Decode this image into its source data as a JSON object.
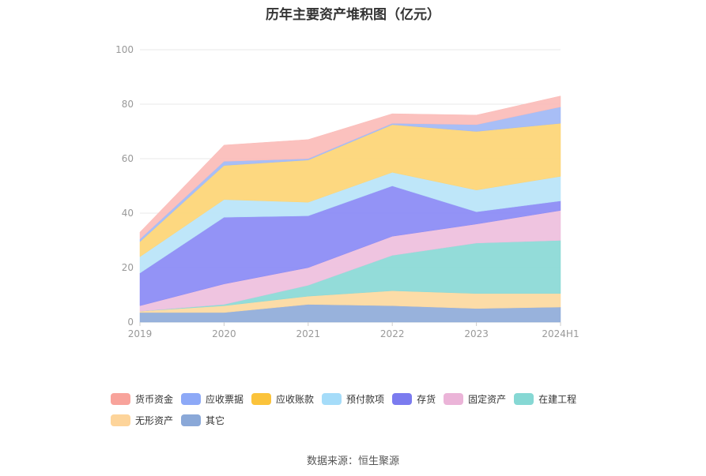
{
  "chart_data": {
    "type": "area",
    "stacked": true,
    "title": "历年主要资产堆积图（亿元）",
    "categories": [
      "2019",
      "2020",
      "2021",
      "2022",
      "2023",
      "2024H1"
    ],
    "ylim": [
      0,
      100
    ],
    "yticks": [
      0,
      20,
      40,
      60,
      80,
      100
    ],
    "grid": true,
    "legend_position": "bottom",
    "series": [
      {
        "name": "其它",
        "color": "#8fabd9",
        "values": [
          3.5,
          3.5,
          6.5,
          6,
          5,
          5.5
        ]
      },
      {
        "name": "无形资产",
        "color": "#fcd9a0",
        "values": [
          0.5,
          2.5,
          3,
          5.5,
          5.5,
          5
        ]
      },
      {
        "name": "在建工程",
        "color": "#8ad9d6",
        "values": [
          0,
          0.5,
          4,
          13,
          18.5,
          19.5
        ]
      },
      {
        "name": "固定资产",
        "color": "#eebfdd",
        "values": [
          2,
          7.5,
          6.5,
          7,
          7,
          11
        ]
      },
      {
        "name": "存货",
        "color": "#8a8af5",
        "values": [
          12,
          24.5,
          19,
          18.5,
          4.5,
          3.5
        ]
      },
      {
        "name": "预付款项",
        "color": "#b8e4f8",
        "values": [
          6,
          6.5,
          5,
          5,
          8,
          9
        ]
      },
      {
        "name": "应收账款",
        "color": "#fdd575",
        "values": [
          5.5,
          12.5,
          15.5,
          17.5,
          21.5,
          19.5
        ]
      },
      {
        "name": "应收票据",
        "color": "#a1b8f5",
        "values": [
          1,
          1.5,
          0.5,
          0.5,
          2.5,
          6
        ]
      },
      {
        "name": "货币资金",
        "color": "#fbbcb8",
        "values": [
          2.5,
          6,
          7,
          3.5,
          3.5,
          4
        ]
      }
    ],
    "legend_order": [
      "货币资金",
      "应收票据",
      "应收账款",
      "预付款项",
      "存货",
      "固定资产",
      "在建工程",
      "无形资产",
      "其它"
    ],
    "legend_colors": {
      "货币资金": "#f8a39b",
      "应收票据": "#8da9f7",
      "应收账款": "#fbc33b",
      "预付款项": "#a5dcf9",
      "存货": "#7b7bef",
      "固定资产": "#ebb4d8",
      "在建工程": "#86d8d4",
      "无形资产": "#fdd49a",
      "其它": "#8aa8d8"
    }
  },
  "source": "数据来源：恒生聚源"
}
